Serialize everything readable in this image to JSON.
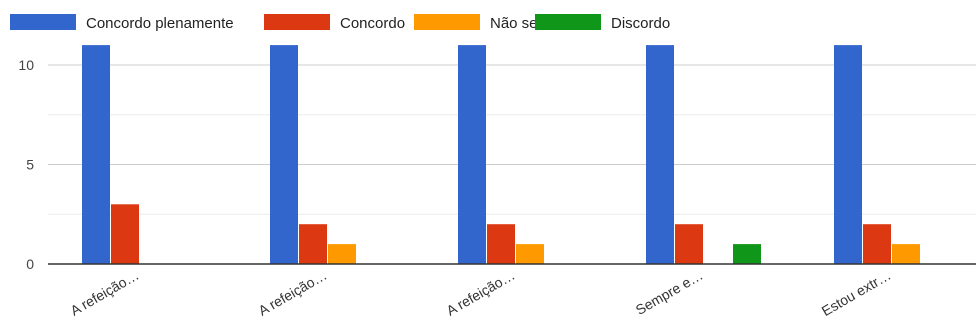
{
  "chart_data": {
    "type": "bar",
    "categories": [
      "A refeição…",
      "A refeição…",
      "A refeição…",
      "Sempre e…",
      "Estou extr…"
    ],
    "series": [
      {
        "name": "Concordo plenamente",
        "color": "#3366cc",
        "values": [
          11,
          11,
          11,
          11,
          11
        ]
      },
      {
        "name": "Concordo",
        "color": "#dc3912",
        "values": [
          3,
          2,
          2,
          2,
          2
        ]
      },
      {
        "name": "Não sei",
        "color": "#ff9900",
        "values": [
          0,
          1,
          1,
          0,
          1
        ]
      },
      {
        "name": "Discordo",
        "color": "#109618",
        "values": [
          0,
          0,
          0,
          1,
          0
        ]
      }
    ],
    "yticks": [
      0,
      5,
      10
    ],
    "ylim": [
      0,
      11
    ],
    "grid": true,
    "legend_position": "top"
  }
}
